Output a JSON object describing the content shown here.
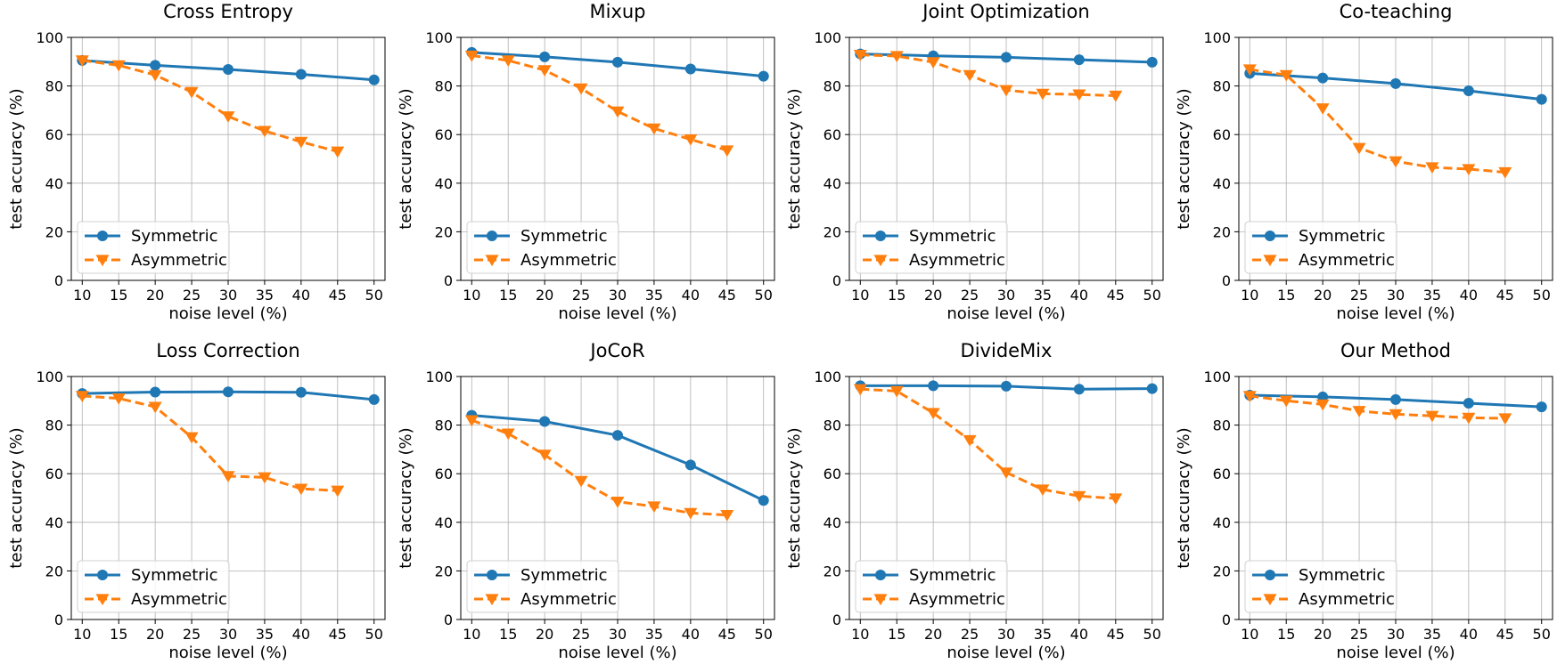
{
  "chart_data": [
    {
      "type": "line",
      "title": "Cross Entropy",
      "xlabel": "noise level (%)",
      "ylabel": "test accuracy (%)",
      "xticks": [
        10,
        15,
        20,
        25,
        30,
        35,
        40,
        45,
        50
      ],
      "yticks": [
        0,
        20,
        40,
        60,
        80,
        100
      ],
      "xlim": [
        8.5,
        51.5
      ],
      "ylim": [
        0,
        100
      ],
      "grid": true,
      "legend_position": "lower-left",
      "series": [
        {
          "name": "Symmetric",
          "color": "#1f77b4",
          "style": "solid",
          "marker": "circle",
          "x": [
            10,
            20,
            30,
            40,
            50
          ],
          "y": [
            90.5,
            88.5,
            86.8,
            84.8,
            82.5
          ]
        },
        {
          "name": "Asymmetric",
          "color": "#ff7f0e",
          "style": "dashed",
          "marker": "triangle-down",
          "x": [
            10,
            15,
            20,
            25,
            30,
            35,
            40,
            45
          ],
          "y": [
            90.5,
            88.5,
            84.5,
            77.5,
            67.5,
            61.5,
            57.0,
            53.0
          ]
        }
      ]
    },
    {
      "type": "line",
      "title": "Mixup",
      "xlabel": "noise level (%)",
      "ylabel": "test accuracy (%)",
      "xticks": [
        10,
        15,
        20,
        25,
        30,
        35,
        40,
        45,
        50
      ],
      "yticks": [
        0,
        20,
        40,
        60,
        80,
        100
      ],
      "xlim": [
        8.5,
        51.5
      ],
      "ylim": [
        0,
        100
      ],
      "grid": true,
      "legend_position": "lower-left",
      "series": [
        {
          "name": "Symmetric",
          "color": "#1f77b4",
          "style": "solid",
          "marker": "circle",
          "x": [
            10,
            20,
            30,
            40,
            50
          ],
          "y": [
            93.8,
            92.0,
            89.8,
            87.0,
            84.0
          ]
        },
        {
          "name": "Asymmetric",
          "color": "#ff7f0e",
          "style": "dashed",
          "marker": "triangle-down",
          "x": [
            10,
            15,
            20,
            25,
            30,
            35,
            40,
            45
          ],
          "y": [
            92.5,
            90.5,
            86.5,
            79.0,
            69.5,
            62.5,
            58.0,
            53.5
          ]
        }
      ]
    },
    {
      "type": "line",
      "title": "Joint Optimization",
      "xlabel": "noise level (%)",
      "ylabel": "test accuracy (%)",
      "xticks": [
        10,
        15,
        20,
        25,
        30,
        35,
        40,
        45,
        50
      ],
      "yticks": [
        0,
        20,
        40,
        60,
        80,
        100
      ],
      "xlim": [
        8.5,
        51.5
      ],
      "ylim": [
        0,
        100
      ],
      "grid": true,
      "legend_position": "lower-left",
      "series": [
        {
          "name": "Symmetric",
          "color": "#1f77b4",
          "style": "solid",
          "marker": "circle",
          "x": [
            10,
            20,
            30,
            40,
            50
          ],
          "y": [
            93.2,
            92.4,
            91.8,
            90.8,
            89.8
          ]
        },
        {
          "name": "Asymmetric",
          "color": "#ff7f0e",
          "style": "dashed",
          "marker": "triangle-down",
          "x": [
            10,
            15,
            20,
            25,
            30,
            35,
            40,
            45
          ],
          "y": [
            92.8,
            92.3,
            89.8,
            84.5,
            78.3,
            76.8,
            76.5,
            76.0
          ]
        }
      ]
    },
    {
      "type": "line",
      "title": "Co-teaching",
      "xlabel": "noise level (%)",
      "ylabel": "test accuracy (%)",
      "xticks": [
        10,
        15,
        20,
        25,
        30,
        35,
        40,
        45,
        50
      ],
      "yticks": [
        0,
        20,
        40,
        60,
        80,
        100
      ],
      "xlim": [
        8.5,
        51.5
      ],
      "ylim": [
        0,
        100
      ],
      "grid": true,
      "legend_position": "lower-left",
      "series": [
        {
          "name": "Symmetric",
          "color": "#1f77b4",
          "style": "solid",
          "marker": "circle",
          "x": [
            10,
            20,
            30,
            40,
            50
          ],
          "y": [
            85.2,
            83.3,
            81.0,
            78.0,
            74.5
          ]
        },
        {
          "name": "Asymmetric",
          "color": "#ff7f0e",
          "style": "dashed",
          "marker": "triangle-down",
          "x": [
            10,
            15,
            20,
            25,
            30,
            35,
            40,
            45
          ],
          "y": [
            86.8,
            84.5,
            70.8,
            54.5,
            49.0,
            46.5,
            45.8,
            44.5
          ]
        }
      ]
    },
    {
      "type": "line",
      "title": "Loss Correction",
      "xlabel": "noise level (%)",
      "ylabel": "test accuracy (%)",
      "xticks": [
        10,
        15,
        20,
        25,
        30,
        35,
        40,
        45,
        50
      ],
      "yticks": [
        0,
        20,
        40,
        60,
        80,
        100
      ],
      "xlim": [
        8.5,
        51.5
      ],
      "ylim": [
        0,
        100
      ],
      "grid": true,
      "legend_position": "lower-left",
      "series": [
        {
          "name": "Symmetric",
          "color": "#1f77b4",
          "style": "solid",
          "marker": "circle",
          "x": [
            10,
            20,
            30,
            40,
            50
          ],
          "y": [
            93.0,
            93.6,
            93.7,
            93.5,
            90.5
          ]
        },
        {
          "name": "Asymmetric",
          "color": "#ff7f0e",
          "style": "dashed",
          "marker": "triangle-down",
          "x": [
            10,
            15,
            20,
            25,
            30,
            35,
            40,
            45
          ],
          "y": [
            92.0,
            91.0,
            87.5,
            75.0,
            59.0,
            58.5,
            53.8,
            53.0
          ]
        }
      ]
    },
    {
      "type": "line",
      "title": "JoCoR",
      "xlabel": "noise level (%)",
      "ylabel": "test accuracy (%)",
      "xticks": [
        10,
        15,
        20,
        25,
        30,
        35,
        40,
        45,
        50
      ],
      "yticks": [
        0,
        20,
        40,
        60,
        80,
        100
      ],
      "xlim": [
        8.5,
        51.5
      ],
      "ylim": [
        0,
        100
      ],
      "grid": true,
      "legend_position": "lower-left",
      "series": [
        {
          "name": "Symmetric",
          "color": "#1f77b4",
          "style": "solid",
          "marker": "circle",
          "x": [
            10,
            20,
            30,
            40,
            50
          ],
          "y": [
            84.0,
            81.5,
            75.8,
            63.6,
            49.0
          ]
        },
        {
          "name": "Asymmetric",
          "color": "#ff7f0e",
          "style": "dashed",
          "marker": "triangle-down",
          "x": [
            10,
            15,
            20,
            25,
            30,
            35,
            40,
            45
          ],
          "y": [
            82.0,
            76.5,
            67.8,
            57.0,
            48.5,
            46.5,
            43.8,
            43.0
          ]
        }
      ]
    },
    {
      "type": "line",
      "title": "DivideMix",
      "xlabel": "noise level (%)",
      "ylabel": "test accuracy (%)",
      "xticks": [
        10,
        15,
        20,
        25,
        30,
        35,
        40,
        45,
        50
      ],
      "yticks": [
        0,
        20,
        40,
        60,
        80,
        100
      ],
      "xlim": [
        8.5,
        51.5
      ],
      "ylim": [
        0,
        100
      ],
      "grid": true,
      "legend_position": "lower-left",
      "series": [
        {
          "name": "Symmetric",
          "color": "#1f77b4",
          "style": "solid",
          "marker": "circle",
          "x": [
            10,
            20,
            30,
            40,
            50
          ],
          "y": [
            96.2,
            96.2,
            96.0,
            94.8,
            95.0
          ]
        },
        {
          "name": "Asymmetric",
          "color": "#ff7f0e",
          "style": "dashed",
          "marker": "triangle-down",
          "x": [
            10,
            15,
            20,
            25,
            30,
            35,
            40,
            45
          ],
          "y": [
            94.8,
            94.0,
            85.0,
            73.8,
            60.5,
            53.5,
            50.8,
            49.8
          ]
        }
      ]
    },
    {
      "type": "line",
      "title": "Our Method",
      "xlabel": "noise level (%)",
      "ylabel": "test accuracy (%)",
      "xticks": [
        10,
        15,
        20,
        25,
        30,
        35,
        40,
        45,
        50
      ],
      "yticks": [
        0,
        20,
        40,
        60,
        80,
        100
      ],
      "xlim": [
        8.5,
        51.5
      ],
      "ylim": [
        0,
        100
      ],
      "grid": true,
      "legend_position": "lower-left",
      "series": [
        {
          "name": "Symmetric",
          "color": "#1f77b4",
          "style": "solid",
          "marker": "circle",
          "x": [
            10,
            20,
            30,
            40,
            50
          ],
          "y": [
            92.3,
            91.6,
            90.5,
            89.0,
            87.5
          ]
        },
        {
          "name": "Asymmetric",
          "color": "#ff7f0e",
          "style": "dashed",
          "marker": "triangle-down",
          "x": [
            10,
            15,
            20,
            25,
            30,
            35,
            40,
            45
          ],
          "y": [
            92.0,
            90.0,
            88.5,
            85.8,
            84.5,
            83.8,
            83.0,
            82.8
          ]
        }
      ]
    }
  ]
}
